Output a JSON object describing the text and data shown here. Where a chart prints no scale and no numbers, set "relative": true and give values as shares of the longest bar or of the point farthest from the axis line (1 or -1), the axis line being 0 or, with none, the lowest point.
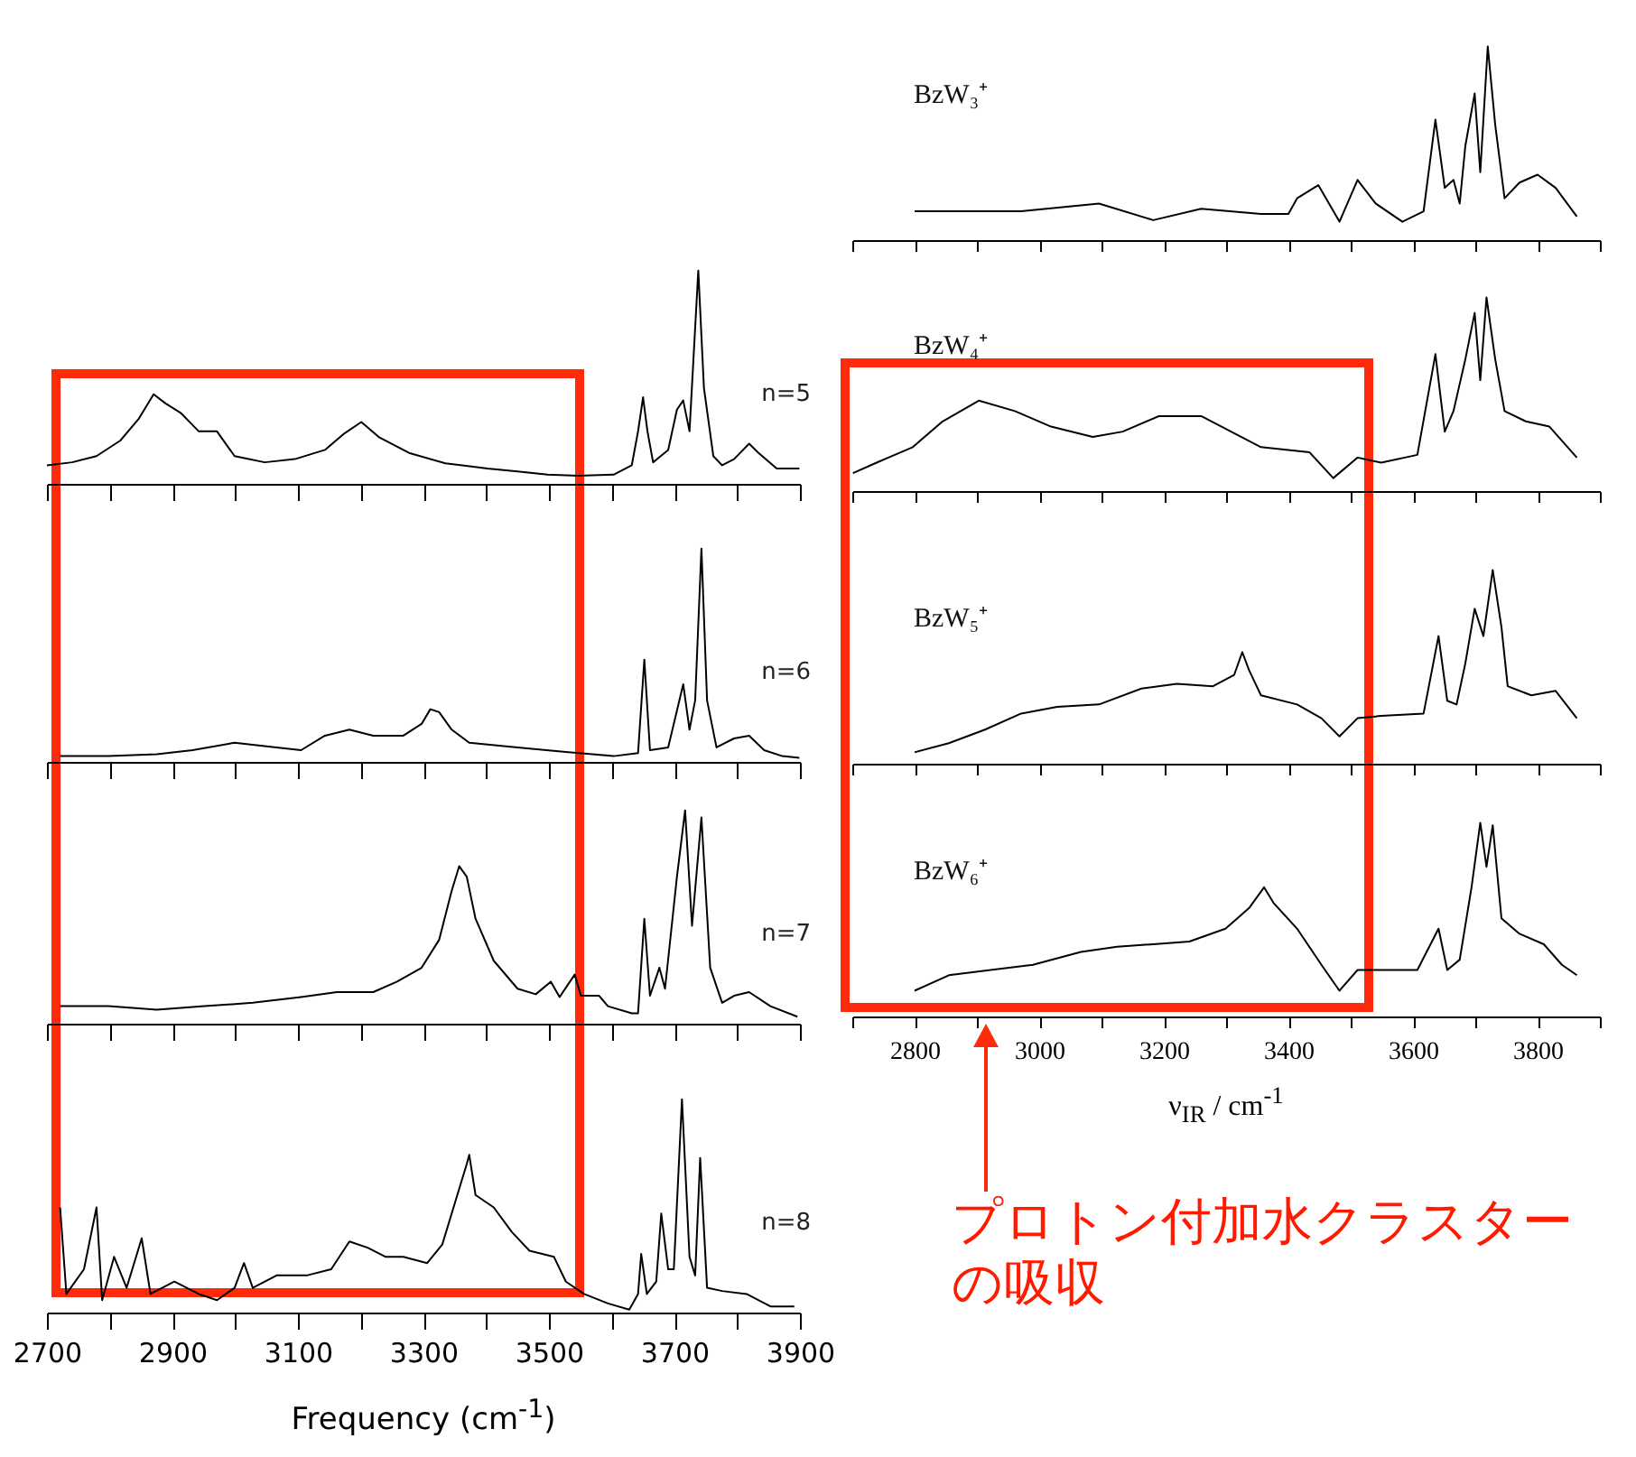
{
  "chart_data": [
    {
      "type": "line",
      "relative": true,
      "xlim": [
        2700,
        3900
      ],
      "tick_labels": false,
      "xticks": [
        {
          "value": 2700,
          "label": null
        },
        {
          "value": 2800,
          "label": null
        },
        {
          "value": 2900,
          "label": null
        },
        {
          "value": 3000,
          "label": null
        },
        {
          "value": 3100,
          "label": null
        },
        {
          "value": 3200,
          "label": null
        },
        {
          "value": 3300,
          "label": null
        },
        {
          "value": 3400,
          "label": null
        },
        {
          "value": 3500,
          "label": null
        },
        {
          "value": 3600,
          "label": null
        },
        {
          "value": 3700,
          "label": null
        },
        {
          "value": 3800,
          "label": null
        },
        {
          "value": 3900,
          "label": null
        }
      ],
      "x": [
        2700,
        2740,
        2779,
        2817,
        2846,
        2870,
        2889,
        2913,
        2942,
        2971,
        2999,
        3047,
        3095,
        3143,
        3172,
        3201,
        3230,
        3277,
        3335,
        3402,
        3450,
        3498,
        3546,
        3603,
        3632,
        3642,
        3650,
        3657,
        3666,
        3690,
        3704,
        3714,
        3724,
        3738,
        3747,
        3762,
        3776,
        3795,
        3819,
        3834,
        3863,
        3899
      ],
      "series": [
        {
          "name": "n=5",
          "color": "#000000",
          "values": [
            0.087,
            0.101,
            0.13,
            0.203,
            0.304,
            0.42,
            0.377,
            0.333,
            0.246,
            0.246,
            0.13,
            0.101,
            0.116,
            0.159,
            0.232,
            0.29,
            0.217,
            0.145,
            0.096,
            0.072,
            0.058,
            0.043,
            0.038,
            0.043,
            0.087,
            0.246,
            0.406,
            0.246,
            0.101,
            0.159,
            0.348,
            0.391,
            0.246,
            1.0,
            0.449,
            0.13,
            0.087,
            0.116,
            0.188,
            0.145,
            0.072,
            0.072
          ]
        }
      ]
    },
    {
      "type": "line",
      "relative": true,
      "xlim": [
        2700,
        3900
      ],
      "tick_labels": false,
      "xticks": [
        {
          "value": 2700,
          "label": null
        },
        {
          "value": 2800,
          "label": null
        },
        {
          "value": 2900,
          "label": null
        },
        {
          "value": 3000,
          "label": null
        },
        {
          "value": 3100,
          "label": null
        },
        {
          "value": 3200,
          "label": null
        },
        {
          "value": 3300,
          "label": null
        },
        {
          "value": 3400,
          "label": null
        },
        {
          "value": 3500,
          "label": null
        },
        {
          "value": 3600,
          "label": null
        },
        {
          "value": 3700,
          "label": null
        },
        {
          "value": 3800,
          "label": null
        },
        {
          "value": 3900,
          "label": null
        }
      ],
      "x": [
        2721,
        2798,
        2875,
        2932,
        2999,
        3066,
        3105,
        3143,
        3182,
        3220,
        3268,
        3297,
        3311,
        3325,
        3345,
        3373,
        3450,
        3527,
        3603,
        3642,
        3652,
        3661,
        3690,
        3714,
        3724,
        3733,
        3743,
        3752,
        3767,
        3795,
        3819,
        3843,
        3872,
        3899
      ],
      "series": [
        {
          "name": "n=6",
          "color": "#000000",
          "values": [
            0.027,
            0.027,
            0.036,
            0.055,
            0.09,
            0.068,
            0.055,
            0.123,
            0.151,
            0.123,
            0.123,
            0.178,
            0.247,
            0.233,
            0.151,
            0.09,
            0.068,
            0.047,
            0.027,
            0.041,
            0.479,
            0.055,
            0.068,
            0.364,
            0.151,
            0.288,
            1.0,
            0.288,
            0.068,
            0.11,
            0.123,
            0.055,
            0.027,
            0.019
          ]
        }
      ]
    },
    {
      "type": "line",
      "relative": true,
      "xlim": [
        2700,
        3900
      ],
      "tick_labels": false,
      "xticks": [
        {
          "value": 2700,
          "label": null
        },
        {
          "value": 2800,
          "label": null
        },
        {
          "value": 2900,
          "label": null
        },
        {
          "value": 3000,
          "label": null
        },
        {
          "value": 3100,
          "label": null
        },
        {
          "value": 3200,
          "label": null
        },
        {
          "value": 3300,
          "label": null
        },
        {
          "value": 3400,
          "label": null
        },
        {
          "value": 3500,
          "label": null
        },
        {
          "value": 3600,
          "label": null
        },
        {
          "value": 3700,
          "label": null
        },
        {
          "value": 3800,
          "label": null
        },
        {
          "value": 3900,
          "label": null
        }
      ],
      "x": [
        2721,
        2798,
        2875,
        2951,
        3028,
        3105,
        3162,
        3220,
        3258,
        3297,
        3325,
        3345,
        3357,
        3369,
        3383,
        3412,
        3450,
        3479,
        3503,
        3517,
        3541,
        3551,
        3580,
        3594,
        3632,
        3642,
        3652,
        3661,
        3676,
        3685,
        3704,
        3717,
        3728,
        3743,
        3757,
        3776,
        3795,
        3819,
        3853,
        3896
      ],
      "series": [
        {
          "name": "n=7",
          "color": "#000000",
          "values": [
            0.082,
            0.082,
            0.066,
            0.082,
            0.098,
            0.125,
            0.148,
            0.148,
            0.197,
            0.262,
            0.393,
            0.623,
            0.738,
            0.689,
            0.492,
            0.295,
            0.164,
            0.138,
            0.197,
            0.125,
            0.23,
            0.131,
            0.131,
            0.082,
            0.049,
            0.049,
            0.492,
            0.131,
            0.262,
            0.164,
            0.689,
            1.0,
            0.459,
            0.967,
            0.262,
            0.098,
            0.131,
            0.148,
            0.082,
            0.033
          ]
        }
      ]
    },
    {
      "type": "line",
      "relative": true,
      "xlim": [
        2700,
        3900
      ],
      "tick_labels": "x",
      "xlabel": "Frequency (cm$^{-1}$)",
      "xticks": [
        2700,
        {
          "value": 2800,
          "label": null
        },
        2900,
        {
          "value": 3000,
          "label": null
        },
        3100,
        {
          "value": 3200,
          "label": null
        },
        3300,
        {
          "value": 3400,
          "label": null
        },
        3500,
        {
          "value": 3600,
          "label": null
        },
        3700,
        {
          "value": 3800,
          "label": null
        },
        3900
      ],
      "x": [
        2721,
        2731,
        2759,
        2779,
        2788,
        2807,
        2827,
        2851,
        2865,
        2903,
        2942,
        2971,
        2999,
        3014,
        3028,
        3066,
        3114,
        3153,
        3182,
        3211,
        3240,
        3268,
        3306,
        3330,
        3354,
        3369,
        3373,
        3383,
        3412,
        3441,
        3469,
        3508,
        3527,
        3556,
        3594,
        3628,
        3642,
        3647,
        3656,
        3671,
        3679,
        3690,
        3699,
        3712,
        3724,
        3733,
        3741,
        3752,
        3776,
        3815,
        3853,
        3891
      ],
      "series": [
        {
          "name": "n=8",
          "color": "#000000",
          "values": [
            0.493,
            0.087,
            0.203,
            0.493,
            0.058,
            0.261,
            0.116,
            0.348,
            0.087,
            0.145,
            0.087,
            0.058,
            0.116,
            0.232,
            0.116,
            0.174,
            0.174,
            0.203,
            0.333,
            0.304,
            0.261,
            0.261,
            0.232,
            0.319,
            0.551,
            0.696,
            0.739,
            0.551,
            0.493,
            0.377,
            0.29,
            0.261,
            0.145,
            0.087,
            0.043,
            0.014,
            0.087,
            0.275,
            0.087,
            0.145,
            0.464,
            0.203,
            0.203,
            1.0,
            0.261,
            0.174,
            0.725,
            0.116,
            0.101,
            0.087,
            0.029,
            0.029
          ]
        }
      ]
    },
    {
      "type": "line",
      "relative": true,
      "xlim": [
        2700,
        3900
      ],
      "tick_labels": false,
      "xticks": [
        {
          "value": 2700,
          "label": null
        },
        {
          "value": 2800,
          "label": null
        },
        {
          "value": 2900,
          "label": null
        },
        {
          "value": 3000,
          "label": null
        },
        {
          "value": 3100,
          "label": null
        },
        {
          "value": 3200,
          "label": null
        },
        {
          "value": 3300,
          "label": null
        },
        {
          "value": 3400,
          "label": null
        },
        {
          "value": 3500,
          "label": null
        },
        {
          "value": 3600,
          "label": null
        },
        {
          "value": 3700,
          "label": null
        },
        {
          "value": 3800,
          "label": null
        },
        {
          "value": 3900,
          "label": null
        }
      ],
      "x": [
        2800,
        2874,
        2971,
        3096,
        3183,
        3260,
        3356,
        3400,
        3414,
        3448,
        3482,
        3511,
        3540,
        3583,
        3617,
        3636,
        3651,
        3665,
        3675,
        3684,
        3699,
        3708,
        3720,
        3732,
        3747,
        3771,
        3800,
        3829,
        3863
      ],
      "series": [
        {
          "name": "BzW₃⁺",
          "color": "#000000",
          "values": [
            0.149,
            0.149,
            0.149,
            0.189,
            0.103,
            0.162,
            0.135,
            0.135,
            0.216,
            0.284,
            0.095,
            0.311,
            0.189,
            0.095,
            0.149,
            0.622,
            0.27,
            0.311,
            0.189,
            0.486,
            0.757,
            0.351,
            1.0,
            0.595,
            0.216,
            0.297,
            0.338,
            0.27,
            0.122
          ]
        }
      ]
    },
    {
      "type": "line",
      "relative": true,
      "xlim": [
        2700,
        3900
      ],
      "tick_labels": false,
      "xticks": [
        {
          "value": 2700,
          "label": null
        },
        {
          "value": 2800,
          "label": null
        },
        {
          "value": 2900,
          "label": null
        },
        {
          "value": 3000,
          "label": null
        },
        {
          "value": 3100,
          "label": null
        },
        {
          "value": 3200,
          "label": null
        },
        {
          "value": 3300,
          "label": null
        },
        {
          "value": 3400,
          "label": null
        },
        {
          "value": 3500,
          "label": null
        },
        {
          "value": 3600,
          "label": null
        },
        {
          "value": 3700,
          "label": null
        },
        {
          "value": 3800,
          "label": null
        },
        {
          "value": 3900,
          "label": null
        }
      ],
      "x": [
        2701,
        2739,
        2797,
        2845,
        2903,
        2961,
        3019,
        3086,
        3134,
        3192,
        3260,
        3308,
        3356,
        3434,
        3472,
        3511,
        3549,
        3607,
        3636,
        3651,
        3665,
        3684,
        3699,
        3708,
        3718,
        3732,
        3747,
        3781,
        3819,
        3863
      ],
      "series": [
        {
          "name": "BzW₄⁺",
          "color": "#000000",
          "values": [
            0.093,
            0.147,
            0.227,
            0.36,
            0.467,
            0.413,
            0.333,
            0.28,
            0.307,
            0.387,
            0.387,
            0.307,
            0.227,
            0.2,
            0.067,
            0.173,
            0.147,
            0.187,
            0.707,
            0.307,
            0.413,
            0.68,
            0.92,
            0.573,
            1.0,
            0.68,
            0.413,
            0.36,
            0.333,
            0.173
          ]
        }
      ]
    },
    {
      "type": "line",
      "relative": true,
      "xlim": [
        2700,
        3900
      ],
      "tick_labels": false,
      "xticks": [
        {
          "value": 2700,
          "label": null
        },
        {
          "value": 2800,
          "label": null
        },
        {
          "value": 2900,
          "label": null
        },
        {
          "value": 3000,
          "label": null
        },
        {
          "value": 3100,
          "label": null
        },
        {
          "value": 3200,
          "label": null
        },
        {
          "value": 3300,
          "label": null
        },
        {
          "value": 3400,
          "label": null
        },
        {
          "value": 3500,
          "label": null
        },
        {
          "value": 3600,
          "label": null
        },
        {
          "value": 3700,
          "label": null
        },
        {
          "value": 3800,
          "label": null
        },
        {
          "value": 3900,
          "label": null
        }
      ],
      "x": [
        2800,
        2855,
        2913,
        2971,
        3029,
        3096,
        3164,
        3221,
        3279,
        3313,
        3326,
        3337,
        3356,
        3414,
        3453,
        3482,
        3511,
        3549,
        3617,
        3641,
        3655,
        3670,
        3684,
        3699,
        3713,
        3728,
        3742,
        3752,
        3790,
        3829,
        3863
      ],
      "series": [
        {
          "name": "BzW₅⁺",
          "color": "#000000",
          "values": [
            0.059,
            0.106,
            0.176,
            0.259,
            0.294,
            0.306,
            0.388,
            0.412,
            0.4,
            0.459,
            0.576,
            0.482,
            0.353,
            0.306,
            0.235,
            0.141,
            0.235,
            0.247,
            0.259,
            0.659,
            0.325,
            0.306,
            0.518,
            0.8,
            0.659,
            1.0,
            0.706,
            0.4,
            0.353,
            0.376,
            0.235
          ]
        }
      ]
    },
    {
      "type": "line",
      "relative": true,
      "xlim": [
        2700,
        3900
      ],
      "tick_labels": "x",
      "xlabel": "ν$_{IR}$ / cm$^{-1}$",
      "xticks": [
        {
          "value": 2700,
          "label": null
        },
        2800,
        {
          "value": 2900,
          "label": null
        },
        3000,
        {
          "value": 3100,
          "label": null
        },
        3200,
        {
          "value": 3300,
          "label": null
        },
        3400,
        {
          "value": 3500,
          "label": null
        },
        3600,
        {
          "value": 3700,
          "label": null
        },
        3800,
        {
          "value": 3900,
          "label": null
        }
      ],
      "x": [
        2800,
        2855,
        2922,
        2990,
        3067,
        3125,
        3183,
        3241,
        3299,
        3337,
        3361,
        3376,
        3414,
        3453,
        3482,
        3511,
        3549,
        3607,
        3641,
        3655,
        3675,
        3694,
        3708,
        3718,
        3728,
        3742,
        3771,
        3810,
        3839,
        3863
      ],
      "series": [
        {
          "name": "BzW₆⁺",
          "color": "#000000",
          "values": [
            0.133,
            0.213,
            0.24,
            0.267,
            0.333,
            0.36,
            0.373,
            0.387,
            0.453,
            0.56,
            0.667,
            0.587,
            0.453,
            0.267,
            0.133,
            0.24,
            0.24,
            0.24,
            0.453,
            0.24,
            0.293,
            0.667,
            1.0,
            0.773,
            0.987,
            0.507,
            0.427,
            0.373,
            0.267,
            0.213
          ]
        }
      ],
      "annotations": [
        "プロトン付加水クラスターの吸収"
      ]
    }
  ]
}
